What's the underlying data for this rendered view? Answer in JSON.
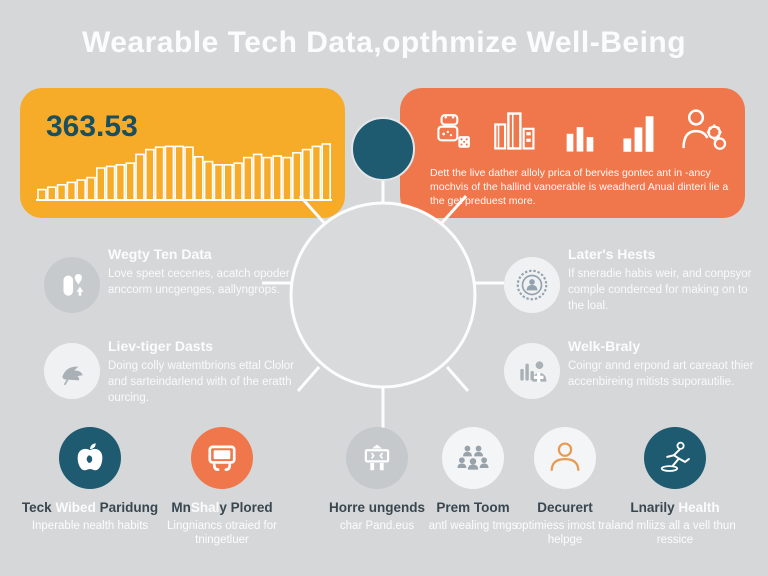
{
  "title": "Wearable Tech Data,opthmize Well-Being",
  "colors": {
    "background": "#D5D7D9",
    "yellow_card": "#F6AC28",
    "orange_card": "#F0774B",
    "teal": "#1E5A70",
    "dark_text": "#3A4750",
    "stat_text": "#1B4F5E"
  },
  "stat_card": {
    "value": "363.53"
  },
  "chart_data": {
    "type": "bar",
    "title": "363.53",
    "values": [
      13,
      16,
      19,
      22,
      25,
      28,
      40,
      42,
      44,
      46,
      57,
      63,
      66,
      67,
      67,
      66,
      54,
      48,
      44,
      44,
      46,
      53,
      57,
      53,
      55,
      53,
      59,
      63,
      67,
      70
    ],
    "ylim": [
      0,
      100
    ],
    "grid": false,
    "note": "white outlined bars on yellow card, no axis labels"
  },
  "info_card": {
    "icons": [
      "smartwatch-icon",
      "buildings-icon",
      "bar-chart-small-icon",
      "bar-chart-rising-icon",
      "person-gear-icon"
    ],
    "text": "Dett the live dather alloly prica of bervies gontec ant in -ancy mochvis of the hallind vanoerable is weadherd Anual dinteri lie a the get preduest more."
  },
  "hub": {
    "node_color": "#1E5A70",
    "circle_stroke": "#FCFDFD"
  },
  "sections": [
    {
      "title": "Wegty Ten Data",
      "body": "Love speet cecenes, acatch opoder anccorm uncgenges, aallyngrops.",
      "icon": "watch-pin-icon"
    },
    {
      "title": "Liev-tiger Dasts",
      "body": "Doing colly watemtbrions ettal Clolor and sarteindarlend with of the eratth ourcing.",
      "icon": "dove-icon"
    },
    {
      "title": "Later's Hests",
      "body": "If sneradie habis weir, and conpsyor comple conderced for making on to the loal.",
      "icon": "seal-icon"
    },
    {
      "title": "Welk-Braly",
      "body": "Coingr annd erpond art careaot thier accenbireing mitists suporautilie.",
      "icon": "health-stats-icon"
    }
  ],
  "bottom_items": [
    {
      "icon": "apple-icon",
      "label_parts": [
        {
          "t": "Teck ",
          "w": false
        },
        {
          "t": "Wibed",
          "w": true
        },
        {
          "t": " Paridung",
          "w": false
        }
      ],
      "subtext": "Inperable nealth habits"
    },
    {
      "icon": "wearable-device-icon",
      "label_parts": [
        {
          "t": "Mn",
          "w": false
        },
        {
          "t": "Shal",
          "w": true
        },
        {
          "t": "y Plored",
          "w": false
        }
      ],
      "subtext": "Lingniancs otraied for tningetluer"
    },
    {
      "icon": "billboard-icon",
      "label_parts": [
        {
          "t": "Horre ungends",
          "w": false
        }
      ],
      "subtext": "char Pand.eus"
    },
    {
      "icon": "people-group-icon",
      "label_parts": [
        {
          "t": "Prem Toom",
          "w": false
        }
      ],
      "subtext": "antl wealing tmgs"
    },
    {
      "icon": "person-outline-icon",
      "label_parts": [
        {
          "t": "Decurert",
          "w": false
        }
      ],
      "subtext": "optimiess imost tral helpge"
    },
    {
      "icon": "runner-icon",
      "label_parts": [
        {
          "t": "Lnarily ",
          "w": false
        },
        {
          "t": "Health",
          "w": true
        }
      ],
      "subtext": "and mliizs all a vell thun ressice"
    }
  ]
}
